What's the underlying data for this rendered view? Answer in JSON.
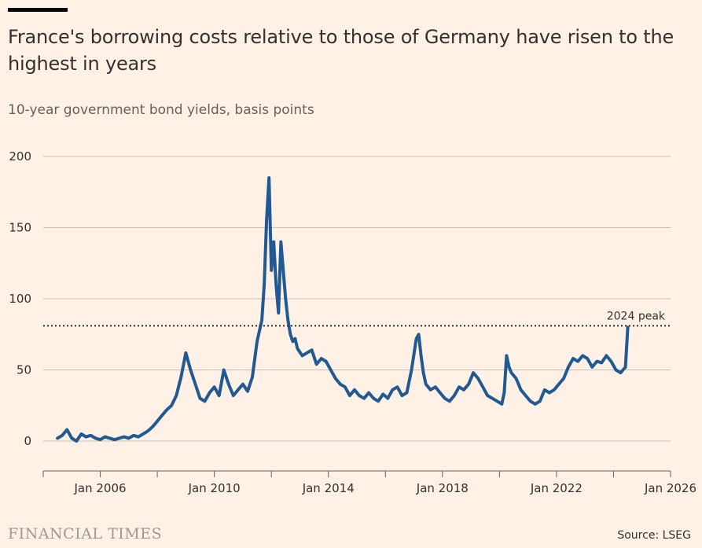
{
  "header": {
    "title": "France's borrowing costs relative to those of Germany have risen to the highest in years",
    "subtitle": "10-year government bond yields, basis points"
  },
  "footer": {
    "brand": "FINANCIAL TIMES",
    "source": "Source: LSEG"
  },
  "colors": {
    "line": "#215a93",
    "grid": "#ccc1b7",
    "background": "#fff1e5"
  },
  "chart_data": {
    "type": "line",
    "title": "France's borrowing costs relative to those of Germany have risen to the highest in years",
    "subtitle": "10-year government bond yields, basis points",
    "xlabel": "",
    "ylabel": "",
    "xlim": [
      "2004-01-01",
      "2026-01-01"
    ],
    "ylim": [
      -20,
      200
    ],
    "yticks": [
      0,
      50,
      100,
      150,
      200
    ],
    "xticks": [
      "Jan 2006",
      "Jan 2010",
      "Jan 2014",
      "Jan 2018",
      "Jan 2022",
      "Jan 2026"
    ],
    "grid": true,
    "legend": "none",
    "series": [
      {
        "x": [
          "2004-07",
          "2004-09",
          "2004-11",
          "2005-01",
          "2005-03",
          "2005-05",
          "2005-07",
          "2005-09",
          "2005-11",
          "2006-01",
          "2006-03",
          "2006-05",
          "2006-07",
          "2006-09",
          "2006-11",
          "2007-01",
          "2007-03",
          "2007-05",
          "2007-07",
          "2007-09",
          "2007-11",
          "2008-01",
          "2008-03",
          "2008-05",
          "2008-07",
          "2008-09",
          "2008-11",
          "2009-01",
          "2009-03",
          "2009-05",
          "2009-07",
          "2009-09",
          "2009-11",
          "2010-01",
          "2010-03",
          "2010-05",
          "2010-07",
          "2010-09",
          "2010-11",
          "2011-01",
          "2011-03",
          "2011-05",
          "2011-07",
          "2011-09",
          "2011-10",
          "2011-11",
          "2011-12",
          "2012-01",
          "2012-02",
          "2012-03",
          "2012-04",
          "2012-05",
          "2012-06",
          "2012-07",
          "2012-08",
          "2012-09",
          "2012-10",
          "2012-11",
          "2012-12",
          "2013-02",
          "2013-04",
          "2013-06",
          "2013-08",
          "2013-10",
          "2013-12",
          "2014-02",
          "2014-04",
          "2014-06",
          "2014-08",
          "2014-10",
          "2014-12",
          "2015-02",
          "2015-04",
          "2015-06",
          "2015-08",
          "2015-10",
          "2015-12",
          "2016-02",
          "2016-04",
          "2016-06",
          "2016-08",
          "2016-10",
          "2016-12",
          "2017-02",
          "2017-03",
          "2017-04",
          "2017-05",
          "2017-06",
          "2017-08",
          "2017-10",
          "2017-12",
          "2018-02",
          "2018-04",
          "2018-06",
          "2018-08",
          "2018-10",
          "2018-12",
          "2019-02",
          "2019-04",
          "2019-06",
          "2019-08",
          "2019-10",
          "2019-12",
          "2020-02",
          "2020-03",
          "2020-04",
          "2020-05",
          "2020-06",
          "2020-08",
          "2020-10",
          "2020-12",
          "2021-02",
          "2021-04",
          "2021-06",
          "2021-08",
          "2021-10",
          "2021-12",
          "2022-02",
          "2022-04",
          "2022-06",
          "2022-08",
          "2022-10",
          "2022-12",
          "2023-02",
          "2023-04",
          "2023-06",
          "2023-08",
          "2023-10",
          "2023-12",
          "2024-02",
          "2024-04",
          "2024-05",
          "2024-06",
          "2024-07"
        ],
        "values": [
          2,
          4,
          8,
          2,
          0,
          5,
          3,
          4,
          2,
          1,
          3,
          2,
          1,
          2,
          3,
          2,
          4,
          3,
          5,
          7,
          10,
          14,
          18,
          22,
          25,
          32,
          45,
          62,
          50,
          40,
          30,
          28,
          34,
          38,
          32,
          50,
          40,
          32,
          36,
          40,
          35,
          45,
          70,
          85,
          110,
          155,
          185,
          120,
          140,
          110,
          90,
          140,
          120,
          100,
          85,
          75,
          70,
          72,
          65,
          60,
          62,
          64,
          54,
          58,
          56,
          50,
          44,
          40,
          38,
          32,
          36,
          32,
          30,
          34,
          30,
          28,
          33,
          30,
          36,
          38,
          32,
          34,
          50,
          72,
          75,
          60,
          48,
          40,
          36,
          38,
          34,
          30,
          28,
          32,
          38,
          36,
          40,
          48,
          44,
          38,
          32,
          30,
          28,
          26,
          34,
          60,
          52,
          48,
          44,
          36,
          32,
          28,
          26,
          28,
          36,
          34,
          36,
          40,
          44,
          52,
          58,
          56,
          60,
          58,
          52,
          56,
          55,
          60,
          56,
          50,
          48,
          50,
          52,
          80
        ]
      }
    ],
    "annotations": [
      {
        "type": "hline",
        "y": 81,
        "label": "2024 peak",
        "style": "dotted"
      }
    ]
  }
}
